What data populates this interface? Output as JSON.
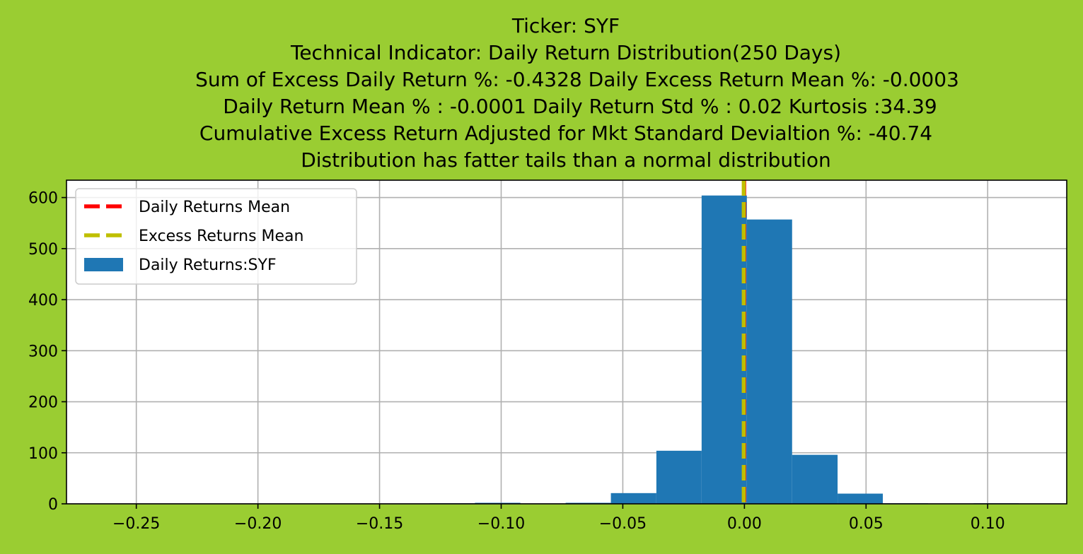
{
  "chart_data": {
    "type": "bar",
    "title_lines": [
      "Ticker: SYF",
      "Technical Indicator: Daily Return Distribution(250 Days)",
      "Sum of Excess Daily Return %: -0.4328   Daily Excess Return Mean %: -0.0003",
      "Daily Return Mean % : -0.0001    Daily Return Std % : 0.02  Kurtosis :34.39",
      "Cumulative Excess Return Adjusted for Mkt Standard Devialtion %: -40.74",
      "Distribution has fatter tails than a normal distribution"
    ],
    "xlim": [
      -0.2787,
      0.1325
    ],
    "ylim": [
      0,
      634
    ],
    "xticks": [
      -0.25,
      -0.2,
      -0.15,
      -0.1,
      -0.05,
      0.0,
      0.05,
      0.1
    ],
    "xtick_labels": [
      "−0.25",
      "−0.20",
      "−0.15",
      "−0.10",
      "−0.05",
      "0.00",
      "0.05",
      "0.10"
    ],
    "yticks": [
      0,
      100,
      200,
      300,
      400,
      500,
      600
    ],
    "ytick_labels": [
      "0",
      "100",
      "200",
      "300",
      "400",
      "500",
      "600"
    ],
    "grid": true,
    "legend_position": "top-left",
    "histogram": {
      "name": "Daily Returns:SYF",
      "color": "#1f77b4",
      "bins": [
        {
          "x0": -0.2598,
          "x1": -0.2412,
          "count": 0
        },
        {
          "x0": -0.2412,
          "x1": -0.2226,
          "count": 0
        },
        {
          "x0": -0.2226,
          "x1": -0.2039,
          "count": 0
        },
        {
          "x0": -0.2039,
          "x1": -0.1853,
          "count": 0
        },
        {
          "x0": -0.1853,
          "x1": -0.1667,
          "count": 0
        },
        {
          "x0": -0.1667,
          "x1": -0.148,
          "count": 0
        },
        {
          "x0": -0.148,
          "x1": -0.1294,
          "count": 0
        },
        {
          "x0": -0.1294,
          "x1": -0.1108,
          "count": 1
        },
        {
          "x0": -0.1108,
          "x1": -0.0921,
          "count": 2
        },
        {
          "x0": -0.0921,
          "x1": -0.0735,
          "count": 0
        },
        {
          "x0": -0.0735,
          "x1": -0.0549,
          "count": 2
        },
        {
          "x0": -0.0549,
          "x1": -0.0362,
          "count": 21
        },
        {
          "x0": -0.0362,
          "x1": -0.0176,
          "count": 104
        },
        {
          "x0": -0.0176,
          "x1": 0.001,
          "count": 604
        },
        {
          "x0": 0.001,
          "x1": 0.0196,
          "count": 557
        },
        {
          "x0": 0.0196,
          "x1": 0.0383,
          "count": 96
        },
        {
          "x0": 0.0383,
          "x1": 0.0569,
          "count": 20
        },
        {
          "x0": 0.0569,
          "x1": 0.0755,
          "count": 1
        },
        {
          "x0": 0.0755,
          "x1": 0.0942,
          "count": 0
        },
        {
          "x0": 0.0942,
          "x1": 0.1128,
          "count": 1
        }
      ]
    },
    "vlines": [
      {
        "name": "Daily Returns Mean",
        "x": -0.0001,
        "color": "#ff0000",
        "style": "dashed"
      },
      {
        "name": "Excess Returns Mean",
        "x": -0.0003,
        "color": "#bfbf00",
        "style": "dashed"
      }
    ],
    "legend": [
      {
        "label": "Daily Returns Mean",
        "kind": "line",
        "color": "#ff0000"
      },
      {
        "label": "Excess Returns Mean",
        "kind": "line",
        "color": "#bfbf00"
      },
      {
        "label": "Daily Returns:SYF",
        "kind": "patch",
        "color": "#1f77b4"
      }
    ],
    "background_color": "#9acd32",
    "plot_background_color": "#ffffff"
  }
}
